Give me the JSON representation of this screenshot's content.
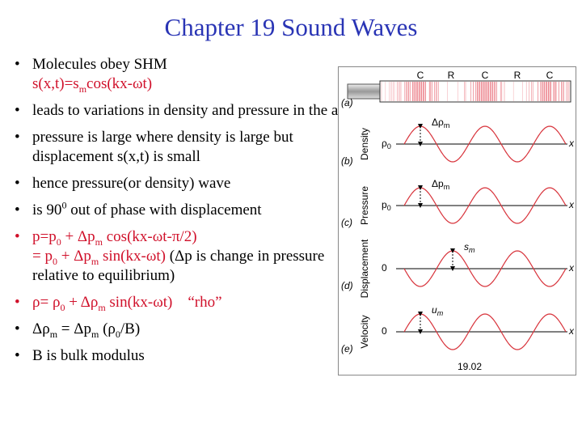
{
  "title": "Chapter 19    Sound Waves",
  "bullets": [
    [
      "Molecules obey SHM",
      "s(x,t)=s",
      "m",
      "cos(kx-ωt)"
    ],
    [
      "leads to variations in density and pressure in the air"
    ],
    [
      "pressure is large where density is large but displacement s(x,t) is small"
    ],
    [
      "hence pressure(or density) wave"
    ],
    [
      "is 90",
      "0",
      " out of phase with displacement"
    ],
    [
      "p=p",
      "0",
      " + Δp",
      "m",
      " cos(kx-ωt-π/2)",
      "= p",
      "0",
      " + Δp",
      "m",
      " sin(kx-ωt)",
      " (Δp is change in pressure relative to equilibrium)"
    ],
    [
      "ρ= ρ",
      "0",
      " + Δρ",
      "m",
      " sin(kx-ωt)",
      "    “rho”"
    ],
    [
      "Δρ",
      "m",
      " = Δp",
      "m",
      " (ρ",
      "0",
      "/B)"
    ],
    [
      "B is bulk modulus"
    ]
  ],
  "figure": {
    "tube_labels": [
      "C",
      "R",
      "C",
      "R",
      "C"
    ],
    "panel_labels": [
      "(a)",
      "(b)",
      "(c)",
      "(d)",
      "(e)"
    ],
    "panels": [
      {
        "quantity": "Density",
        "origin": [
          "ρ",
          "0"
        ],
        "amplitude": [
          "Δρ",
          "m"
        ],
        "axis": "x"
      },
      {
        "quantity": "Pressure",
        "origin": [
          "p",
          "0"
        ],
        "amplitude": [
          "Δp",
          "m"
        ],
        "axis": "x"
      },
      {
        "quantity": "Displacement",
        "origin": [
          "0"
        ],
        "amplitude": [
          "s",
          "m"
        ],
        "axis": "x"
      },
      {
        "quantity": "Velocity",
        "origin": [
          "0"
        ],
        "amplitude": [
          "u",
          "m"
        ],
        "axis": "x"
      }
    ],
    "caption": "19.02"
  }
}
